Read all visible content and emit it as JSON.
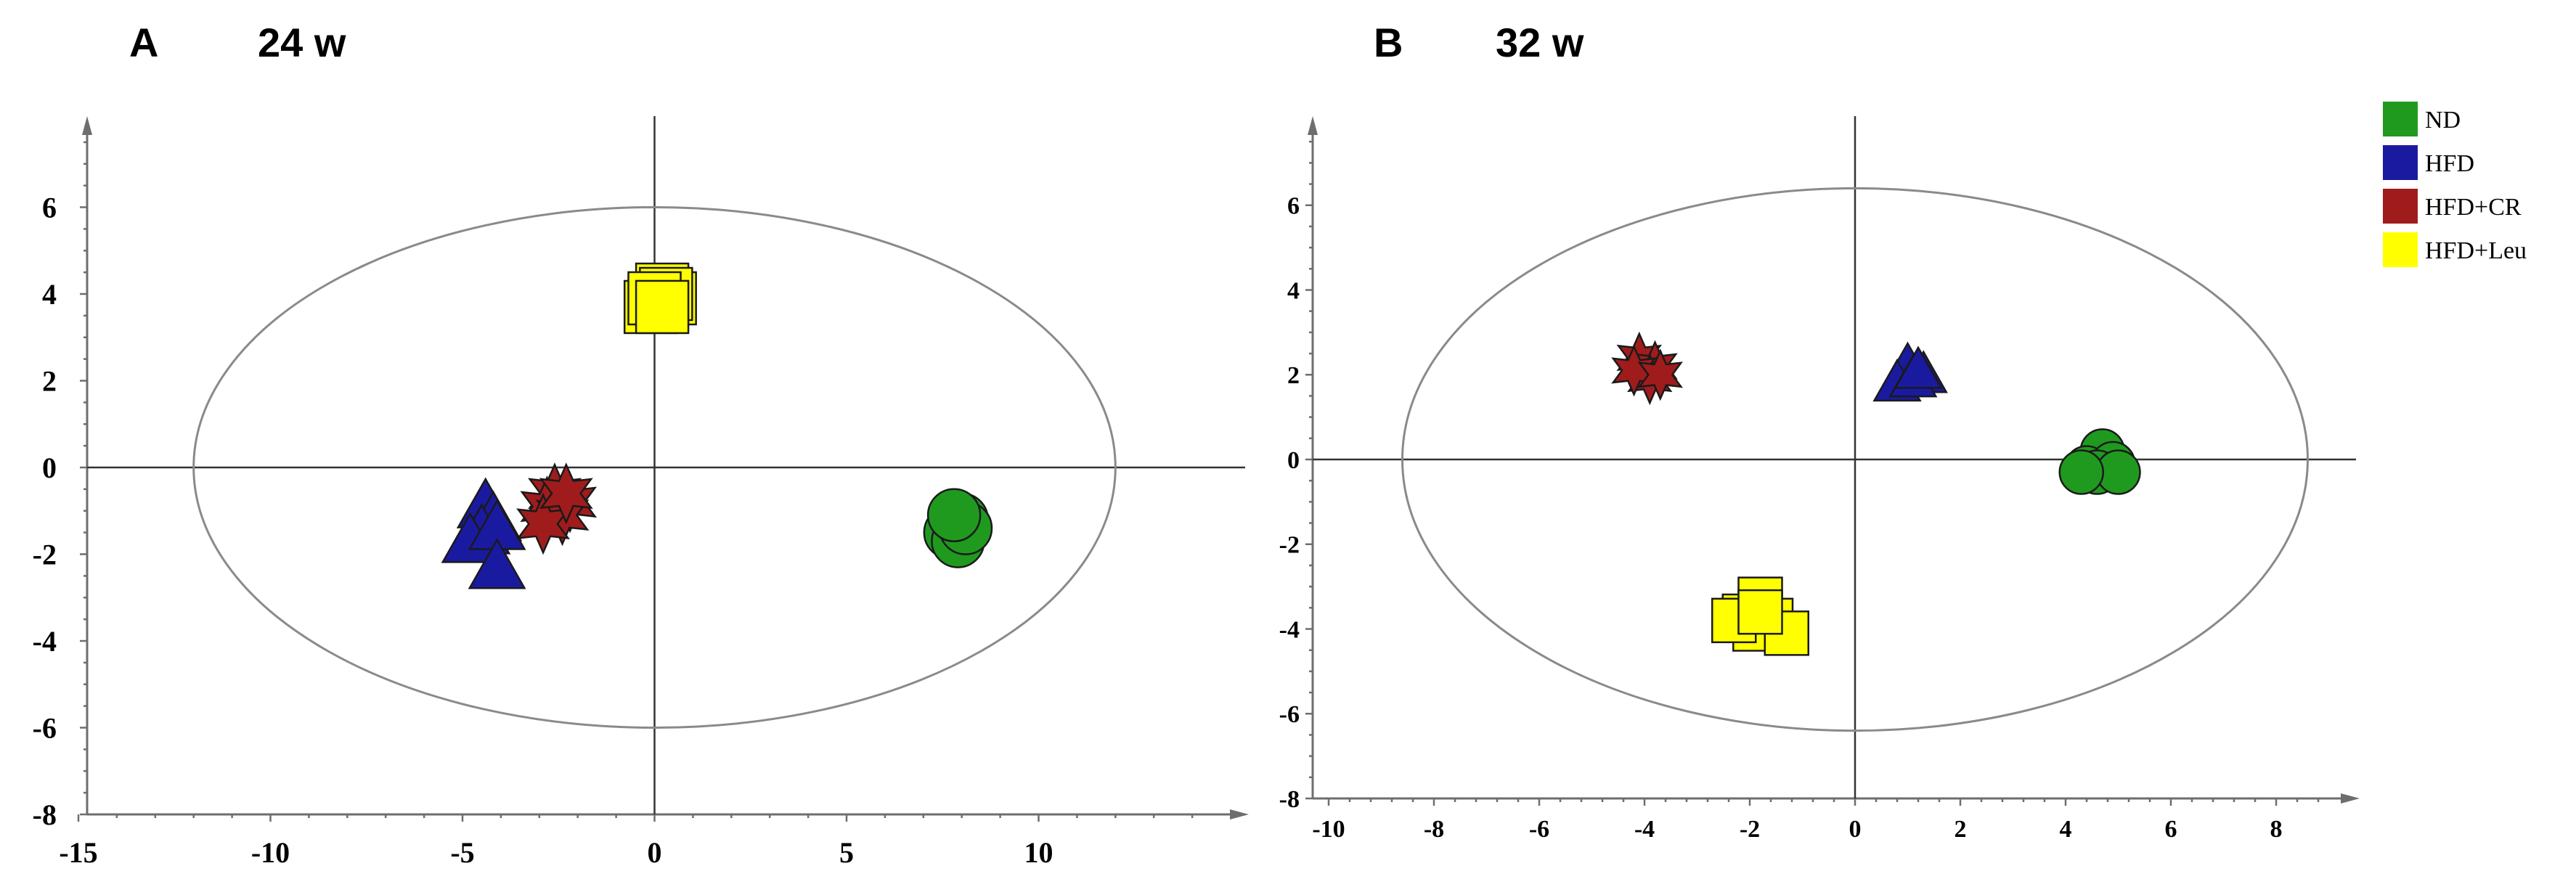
{
  "legend": {
    "items": [
      {
        "label": "ND",
        "color": "#1f9a1f"
      },
      {
        "label": "HFD",
        "color": "#1a1aa0"
      },
      {
        "label": "HFD+CR",
        "color": "#a01c1c"
      },
      {
        "label": "HFD+Leu",
        "color": "#ffff00"
      }
    ]
  },
  "chart_data": [
    {
      "type": "scatter",
      "panel": "A",
      "title": "24 w",
      "xlim": [
        -15,
        15
      ],
      "ylim": [
        -8,
        8
      ],
      "xticks": [
        -15,
        -10,
        -5,
        0,
        5,
        10
      ],
      "yticks": [
        -8,
        -6,
        -4,
        -2,
        0,
        2,
        4,
        6
      ],
      "confidence_ellipse": {
        "rx": 12,
        "ry": 6
      },
      "series": [
        {
          "name": "ND",
          "marker": "circle",
          "color": "#1f9a1f",
          "points": [
            [
              7.8,
              -1.3
            ],
            [
              8.0,
              -1.2
            ],
            [
              7.7,
              -1.5
            ],
            [
              7.9,
              -1.7
            ],
            [
              8.1,
              -1.4
            ],
            [
              7.8,
              -1.1
            ]
          ]
        },
        {
          "name": "HFD",
          "marker": "triangle",
          "color": "#1a1aa0",
          "points": [
            [
              -4.4,
              -0.9
            ],
            [
              -4.2,
              -1.2
            ],
            [
              -4.5,
              -1.5
            ],
            [
              -4.8,
              -1.7
            ],
            [
              -4.1,
              -1.4
            ],
            [
              -4.1,
              -2.3
            ]
          ]
        },
        {
          "name": "HFD+CR",
          "marker": "star",
          "color": "#a01c1c",
          "points": [
            [
              -2.6,
              -0.6
            ],
            [
              -2.2,
              -0.8
            ],
            [
              -2.8,
              -0.9
            ],
            [
              -2.4,
              -1.1
            ],
            [
              -2.9,
              -1.3
            ],
            [
              -2.3,
              -0.6
            ]
          ]
        },
        {
          "name": "HFD+Leu",
          "marker": "square",
          "color": "#ffff00",
          "points": [
            [
              0.2,
              4.1
            ],
            [
              0.4,
              3.9
            ],
            [
              -0.1,
              3.7
            ],
            [
              0.3,
              4.0
            ],
            [
              0.0,
              3.9
            ],
            [
              0.2,
              3.7
            ]
          ]
        }
      ]
    },
    {
      "type": "scatter",
      "panel": "B",
      "title": "32 w",
      "xlim": [
        -10,
        10
      ],
      "ylim": [
        -8,
        8
      ],
      "xticks": [
        -10,
        -8,
        -6,
        -4,
        -2,
        0,
        2,
        4,
        6,
        8
      ],
      "yticks": [
        -8,
        -6,
        -4,
        -2,
        0,
        2,
        4,
        6
      ],
      "confidence_ellipse": {
        "rx": 8.6,
        "ry": 6.4
      },
      "series": [
        {
          "name": "ND",
          "marker": "circle",
          "color": "#1f9a1f",
          "points": [
            [
              4.7,
              0.2
            ],
            [
              4.4,
              -0.2
            ],
            [
              4.9,
              -0.1
            ],
            [
              4.6,
              -0.3
            ],
            [
              5.0,
              -0.3
            ],
            [
              4.3,
              -0.3
            ]
          ]
        },
        {
          "name": "HFD",
          "marker": "triangle",
          "color": "#1a1aa0",
          "points": [
            [
              1.0,
              2.2
            ],
            [
              1.3,
              2.0
            ],
            [
              0.8,
              1.8
            ],
            [
              1.1,
              1.9
            ],
            [
              1.2,
              2.1
            ]
          ]
        },
        {
          "name": "HFD+CR",
          "marker": "star",
          "color": "#a01c1c",
          "points": [
            [
              -4.1,
              2.4
            ],
            [
              -3.8,
              2.2
            ],
            [
              -3.9,
              1.9
            ],
            [
              -4.2,
              2.1
            ],
            [
              -3.7,
              2.0
            ]
          ]
        },
        {
          "name": "HFD+Leu",
          "marker": "square",
          "color": "#ffff00",
          "points": [
            [
              -1.8,
              -3.3
            ],
            [
              -2.1,
              -3.7
            ],
            [
              -1.6,
              -3.8
            ],
            [
              -1.9,
              -4.0
            ],
            [
              -1.3,
              -4.1
            ],
            [
              -2.3,
              -3.8
            ],
            [
              -1.8,
              -3.6
            ]
          ]
        }
      ]
    }
  ]
}
